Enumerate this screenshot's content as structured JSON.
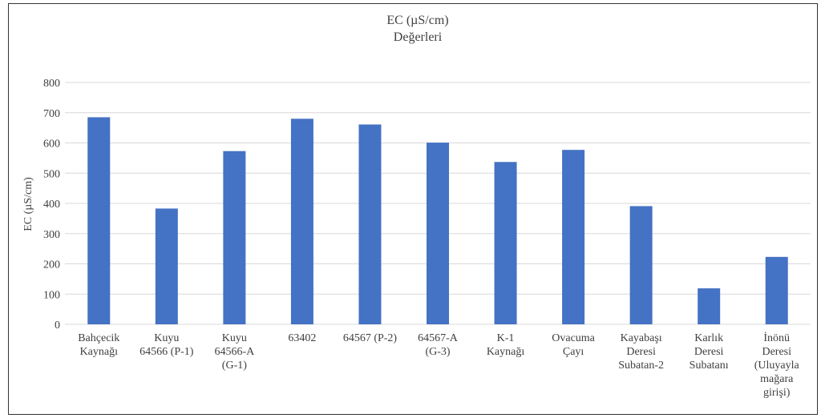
{
  "chart_data": {
    "type": "bar",
    "title": "EC (µS/cm)",
    "subtitle": "Değerleri",
    "xlabel": "",
    "ylabel": "EC (µS/cm)",
    "ylim": [
      0,
      800
    ],
    "yticks": [
      0,
      100,
      200,
      300,
      400,
      500,
      600,
      700,
      800
    ],
    "grid": true,
    "legend": "none",
    "bar_color": "#4472c4",
    "categories": [
      [
        "Bahçecik",
        "Kaynağı"
      ],
      [
        "Kuyu",
        "64566 (P-1)"
      ],
      [
        "Kuyu",
        "64566-A",
        "(G-1)"
      ],
      [
        "63402"
      ],
      [
        "64567 (P-2)"
      ],
      [
        "64567-A",
        "(G-3)"
      ],
      [
        "K-1",
        "Kaynağı"
      ],
      [
        "Ovacuma",
        "Çayı"
      ],
      [
        "Kayabaşı",
        "Deresi",
        "Subatan-2"
      ],
      [
        "Karlık",
        "Deresi",
        "Subatanı"
      ],
      [
        "İnönü",
        "Deresi",
        "(Uluyayla",
        "mağara",
        "girişi)"
      ]
    ],
    "values": [
      685,
      383,
      573,
      680,
      661,
      601,
      537,
      577,
      391,
      119,
      223
    ]
  }
}
